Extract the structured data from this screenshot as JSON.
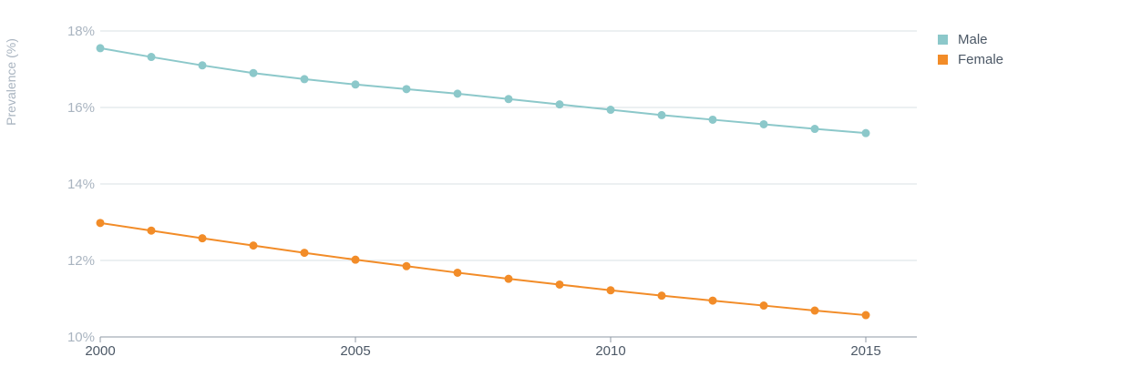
{
  "chart_data": {
    "type": "line",
    "title": "",
    "xlabel": "",
    "ylabel": "Prevalence (%)",
    "x": [
      2000,
      2001,
      2002,
      2003,
      2004,
      2005,
      2006,
      2007,
      2008,
      2009,
      2010,
      2011,
      2012,
      2013,
      2014,
      2015
    ],
    "xlim": [
      2000,
      2016
    ],
    "ylim": [
      10,
      18
    ],
    "x_ticks": [
      {
        "value": 2000,
        "label": "2000"
      },
      {
        "value": 2005,
        "label": "2005"
      },
      {
        "value": 2010,
        "label": "2010"
      },
      {
        "value": 2015,
        "label": "2015"
      }
    ],
    "y_ticks": [
      {
        "value": 10,
        "label": "10%"
      },
      {
        "value": 12,
        "label": "12%"
      },
      {
        "value": 14,
        "label": "14%"
      },
      {
        "value": 16,
        "label": "16%"
      },
      {
        "value": 18,
        "label": "18%"
      }
    ],
    "grid": true,
    "legend_position": "top-right",
    "series": [
      {
        "name": "Male",
        "color": "#8cc8ca",
        "values": [
          17.55,
          17.32,
          17.1,
          16.9,
          16.74,
          16.6,
          16.48,
          16.36,
          16.22,
          16.08,
          15.94,
          15.8,
          15.68,
          15.56,
          15.44,
          15.33
        ]
      },
      {
        "name": "Female",
        "color": "#f28c28",
        "values": [
          12.98,
          12.78,
          12.58,
          12.39,
          12.2,
          12.02,
          11.85,
          11.68,
          11.52,
          11.37,
          11.22,
          11.08,
          10.95,
          10.82,
          10.69,
          10.57
        ]
      }
    ]
  }
}
